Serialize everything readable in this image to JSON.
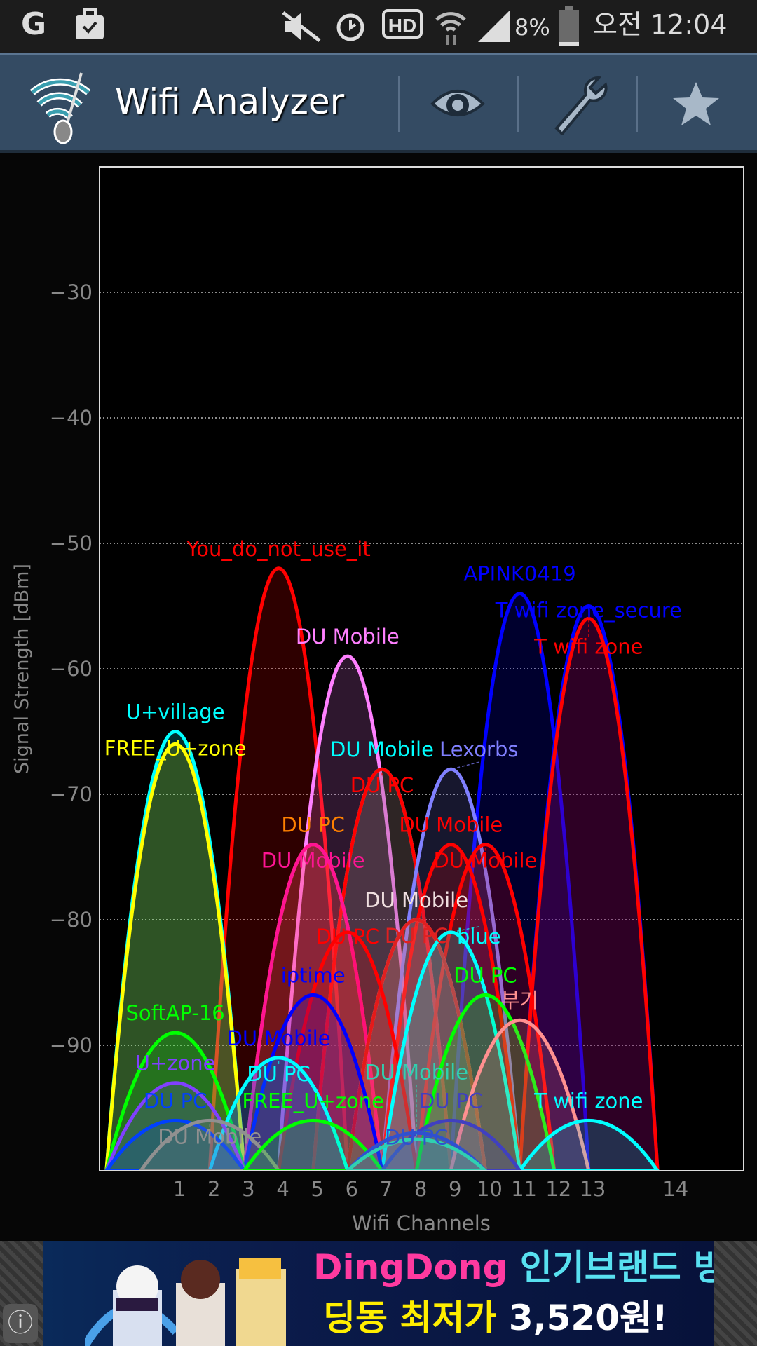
{
  "status_bar": {
    "battery": "8%",
    "time": "오전 12:04",
    "icons": [
      "g-icon",
      "briefcase-check-icon",
      "mute-icon",
      "alarm-icon",
      "hd-voice-icon",
      "wifi-transfer-icon",
      "signal-icon",
      "battery-icon"
    ]
  },
  "app_bar": {
    "title": "Wifi Analyzer",
    "actions": [
      "eye-icon",
      "wrench-icon",
      "star-icon"
    ]
  },
  "chart_data": {
    "type": "area",
    "ylabel": "Signal Strength [dBm]",
    "xlabel": "Wifi Channels",
    "ylim": [
      -100,
      -20
    ],
    "yticks": [
      -30,
      -40,
      -50,
      -60,
      -70,
      -80,
      -90
    ],
    "xticks": [
      {
        "label": "1",
        "channel": 1
      },
      {
        "label": "2",
        "channel": 2
      },
      {
        "label": "3",
        "channel": 3
      },
      {
        "label": "4",
        "channel": 4
      },
      {
        "label": "5",
        "channel": 5
      },
      {
        "label": "6",
        "channel": 6
      },
      {
        "label": "7",
        "channel": 7
      },
      {
        "label": "8",
        "channel": 8
      },
      {
        "label": "9",
        "channel": 9
      },
      {
        "label": "10",
        "channel": 10
      },
      {
        "label": "11",
        "channel": 11
      },
      {
        "label": "12",
        "channel": 12
      },
      {
        "label": "13",
        "channel": 13
      },
      {
        "label": "14",
        "channel": 15.4
      }
    ],
    "xlim": [
      -1.2,
      17.5
    ],
    "grid": true,
    "networks": [
      {
        "ssid": "You_do_not_use_it",
        "channel": 4,
        "dbm": -52,
        "color": "#ff0000"
      },
      {
        "ssid": "APINK0419",
        "channel": 11,
        "dbm": -54,
        "color": "#0000ff"
      },
      {
        "ssid": "T wifi zone_secure",
        "channel": 13,
        "dbm": -55,
        "color": "#0000ff"
      },
      {
        "ssid": "T wifi zone",
        "channel": 13,
        "dbm": -56,
        "color": "#ff0000"
      },
      {
        "ssid": "DU Mobile",
        "channel": 6,
        "dbm": -59,
        "color": "#ff80ff"
      },
      {
        "ssid": "U+village",
        "channel": 1,
        "dbm": -65,
        "color": "#00ffff"
      },
      {
        "ssid": "FREE_U+zone",
        "channel": 1,
        "dbm": -66,
        "color": "#ffff00"
      },
      {
        "ssid": "DU Mobile",
        "channel": 7,
        "dbm": -68,
        "color": "#00ffff"
      },
      {
        "ssid": "DU PC",
        "channel": 7,
        "dbm": -68,
        "color": "#ff0000"
      },
      {
        "ssid": "Lexorbs",
        "channel": 9,
        "dbm": -68,
        "color": "#8080ff"
      },
      {
        "ssid": "DU PC",
        "channel": 5,
        "dbm": -74,
        "color": "#ff8000"
      },
      {
        "ssid": "DU Mobile",
        "channel": 5,
        "dbm": -74,
        "color": "#ff1493"
      },
      {
        "ssid": "DU Mobile",
        "channel": 9,
        "dbm": -74,
        "color": "#ff0000"
      },
      {
        "ssid": "DU Mobile",
        "channel": 10,
        "dbm": -74,
        "color": "#ff0000"
      },
      {
        "ssid": "DU Mobile",
        "channel": 8,
        "dbm": -80,
        "color": "#f0e0e0"
      },
      {
        "ssid": "DU PC",
        "channel": 8,
        "dbm": -80,
        "color": "#e02020"
      },
      {
        "ssid": "DU PC",
        "channel": 6,
        "dbm": -81,
        "color": "#ff0000"
      },
      {
        "ssid": "blue",
        "channel": 9,
        "dbm": -81,
        "color": "#00ffff"
      },
      {
        "ssid": "iptime",
        "channel": 5,
        "dbm": -86,
        "color": "#0000ff"
      },
      {
        "ssid": "DU PC",
        "channel": 10,
        "dbm": -86,
        "color": "#00ff00"
      },
      {
        "ssid": "부기",
        "channel": 11,
        "dbm": -88,
        "color": "#ff9090"
      },
      {
        "ssid": "SoftAP-16",
        "channel": 1,
        "dbm": -89,
        "color": "#00ff00"
      },
      {
        "ssid": "DU Mobile",
        "channel": 4,
        "dbm": -91,
        "color": "#0000ff"
      },
      {
        "ssid": "DU PC",
        "channel": 4,
        "dbm": -91,
        "color": "#00ffff"
      },
      {
        "ssid": "U+zone",
        "channel": 1,
        "dbm": -93,
        "color": "#8040ff"
      },
      {
        "ssid": "DU PC",
        "channel": 1,
        "dbm": -96,
        "color": "#0040ff"
      },
      {
        "ssid": "DU Mobile",
        "channel": 2,
        "dbm": -96,
        "color": "#909090"
      },
      {
        "ssid": "FREE_U+zone",
        "channel": 5,
        "dbm": -96,
        "color": "#00ff00"
      },
      {
        "ssid": "T wifi zone",
        "channel": 13,
        "dbm": -96,
        "color": "#00ffff"
      },
      {
        "ssid": "DU PC",
        "channel": 9,
        "dbm": -96,
        "color": "#4040c0"
      },
      {
        "ssid": "DU PC",
        "channel": 8,
        "dbm": -97,
        "color": "#3050d0"
      },
      {
        "ssid": "DU Mobile",
        "channel": 8,
        "dbm": -97.5,
        "color": "#30d0b0"
      }
    ]
  },
  "ad": {
    "line1_brand": "DingDong",
    "line1_text": "인기브랜드 빙수",
    "line2_text": "딩동 최저가",
    "line2_price": "3,520원!"
  }
}
